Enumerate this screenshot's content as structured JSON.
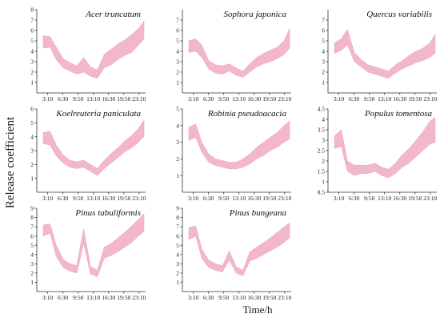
{
  "figure": {
    "ylabel": "Release coefficient",
    "xlabel": "Time/h"
  },
  "chart_data": [
    {
      "type": "area",
      "title": "Acer truncatum",
      "ylim": [
        0,
        8
      ],
      "yticks": [
        1,
        2,
        3,
        4,
        5,
        6,
        7,
        8
      ],
      "xticks": [
        "3:10",
        "6:30",
        "9:50",
        "13:10",
        "16:30",
        "19:50",
        "23:10"
      ],
      "band_color": "#f2b6cd",
      "x": [
        "0:00",
        "1:40",
        "3:10",
        "4:50",
        "6:30",
        "8:10",
        "9:50",
        "11:30",
        "13:10",
        "14:50",
        "16:30",
        "18:10",
        "19:50",
        "21:30",
        "23:10",
        "24:30"
      ],
      "lower": [
        4.3,
        4.4,
        3.2,
        2.4,
        2.1,
        1.8,
        2.0,
        1.6,
        1.4,
        2.4,
        2.7,
        3.2,
        3.6,
        3.9,
        4.6,
        5.2
      ],
      "upper": [
        5.5,
        5.4,
        4.4,
        3.3,
        2.9,
        2.6,
        3.4,
        2.5,
        2.2,
        3.7,
        4.2,
        4.7,
        5.1,
        5.6,
        6.2,
        6.9
      ]
    },
    {
      "type": "area",
      "title": "Sophora japonica",
      "ylim": [
        0,
        8
      ],
      "yticks": [
        1,
        2,
        3,
        4,
        5,
        6,
        7
      ],
      "xticks": [
        "3:10",
        "6:30",
        "9:50",
        "13:10",
        "16:30",
        "19:50",
        "23:10"
      ],
      "band_color": "#f2b6cd",
      "x": [
        "0:00",
        "1:40",
        "3:10",
        "4:50",
        "6:30",
        "8:10",
        "9:50",
        "11:30",
        "13:10",
        "14:50",
        "16:30",
        "18:10",
        "19:50",
        "21:30",
        "23:10",
        "24:30"
      ],
      "lower": [
        3.9,
        4.0,
        3.4,
        2.3,
        1.9,
        1.8,
        2.1,
        1.7,
        1.5,
        2.0,
        2.5,
        2.8,
        3.0,
        3.3,
        3.7,
        4.3
      ],
      "upper": [
        5.0,
        5.2,
        4.6,
        3.1,
        2.7,
        2.6,
        2.8,
        2.4,
        2.1,
        2.8,
        3.4,
        3.8,
        4.1,
        4.4,
        5.0,
        6.2
      ]
    },
    {
      "type": "area",
      "title": "Quercus variabilis",
      "ylim": [
        0,
        8
      ],
      "yticks": [
        1,
        2,
        3,
        4,
        5,
        6,
        7
      ],
      "xticks": [
        "3:10",
        "6:30",
        "9:50",
        "13:10",
        "16:30",
        "19:50",
        "23:10"
      ],
      "band_color": "#f2b6cd",
      "x": [
        "0:00",
        "1:40",
        "3:10",
        "4:50",
        "6:30",
        "8:10",
        "9:50",
        "11:30",
        "13:10",
        "14:50",
        "16:30",
        "18:10",
        "19:50",
        "21:30",
        "23:10",
        "24:30"
      ],
      "lower": [
        3.8,
        4.1,
        4.6,
        3.0,
        2.5,
        2.0,
        1.8,
        1.6,
        1.4,
        1.9,
        2.3,
        2.6,
        2.9,
        3.1,
        3.4,
        3.8
      ],
      "upper": [
        4.8,
        5.2,
        6.1,
        3.9,
        3.2,
        2.7,
        2.5,
        2.3,
        2.1,
        2.7,
        3.1,
        3.6,
        4.0,
        4.3,
        4.8,
        5.6
      ]
    },
    {
      "type": "area",
      "title": "Koelreuteria paniculata",
      "ylim": [
        0,
        6
      ],
      "yticks": [
        1,
        2,
        3,
        4,
        5,
        6
      ],
      "xticks": [
        "3:10",
        "6:30",
        "9:50",
        "13:10",
        "16:30",
        "19:50",
        "23:10"
      ],
      "band_color": "#f2b6cd",
      "x": [
        "0:00",
        "1:40",
        "3:10",
        "4:50",
        "6:30",
        "8:10",
        "9:50",
        "11:30",
        "13:10",
        "14:50",
        "16:30",
        "18:10",
        "19:50",
        "21:30",
        "23:10",
        "24:30"
      ],
      "lower": [
        3.5,
        3.4,
        2.6,
        2.1,
        1.8,
        1.7,
        1.8,
        1.5,
        1.2,
        1.7,
        2.1,
        2.5,
        2.9,
        3.2,
        3.6,
        4.0
      ],
      "upper": [
        4.3,
        4.4,
        3.4,
        2.7,
        2.3,
        2.2,
        2.3,
        2.0,
        1.7,
        2.3,
        2.8,
        3.2,
        3.7,
        4.1,
        4.6,
        5.2
      ]
    },
    {
      "type": "area",
      "title": "Robinia pseudoacacia",
      "ylim": [
        0,
        5
      ],
      "yticks": [
        1,
        2,
        3,
        4,
        5
      ],
      "xticks": [
        "3:10",
        "6:30",
        "9:50",
        "13:10",
        "16:30",
        "19:50",
        "23:10"
      ],
      "band_color": "#f2b6cd",
      "x": [
        "0:00",
        "1:40",
        "3:10",
        "4:50",
        "6:30",
        "8:10",
        "9:50",
        "11:30",
        "13:10",
        "14:50",
        "16:30",
        "18:10",
        "19:50",
        "21:30",
        "23:10",
        "24:30"
      ],
      "lower": [
        3.1,
        3.3,
        2.4,
        1.8,
        1.6,
        1.5,
        1.4,
        1.4,
        1.5,
        1.7,
        2.0,
        2.2,
        2.5,
        2.7,
        3.0,
        3.2
      ],
      "upper": [
        3.9,
        4.1,
        3.0,
        2.3,
        2.0,
        1.9,
        1.8,
        1.8,
        2.0,
        2.3,
        2.7,
        3.0,
        3.3,
        3.6,
        4.0,
        4.3
      ]
    },
    {
      "type": "area",
      "title": "Populus tomentosa",
      "ylim": [
        0.5,
        4.5
      ],
      "yticks": [
        0.5,
        1,
        1.5,
        2,
        2.5,
        3,
        3.5,
        4,
        4.5
      ],
      "xticks": [
        "3:10",
        "6:30",
        "9:50",
        "13:10",
        "16:30",
        "19:50",
        "23:10"
      ],
      "band_color": "#f2b6cd",
      "x": [
        "0:00",
        "1:40",
        "3:10",
        "4:50",
        "6:30",
        "8:10",
        "9:50",
        "11:30",
        "13:10",
        "14:50",
        "16:30",
        "18:10",
        "19:50",
        "21:30",
        "23:10",
        "24:30"
      ],
      "lower": [
        2.6,
        2.7,
        1.5,
        1.3,
        1.4,
        1.4,
        1.5,
        1.3,
        1.2,
        1.4,
        1.7,
        1.9,
        2.2,
        2.5,
        2.8,
        2.9
      ],
      "upper": [
        3.2,
        3.5,
        2.0,
        1.8,
        1.8,
        1.8,
        1.9,
        1.7,
        1.6,
        1.9,
        2.3,
        2.6,
        3.0,
        3.4,
        3.9,
        4.1
      ]
    },
    {
      "type": "area",
      "title": "Pinus tabuliformis",
      "ylim": [
        0,
        9
      ],
      "yticks": [
        1,
        2,
        3,
        4,
        5,
        6,
        7,
        8,
        9
      ],
      "xticks": [
        "3:10",
        "6:30",
        "9:50",
        "13:10",
        "16:30",
        "19:50",
        "23:10"
      ],
      "band_color": "#f2b6cd",
      "x": [
        "0:00",
        "1:40",
        "3:10",
        "4:50",
        "6:30",
        "8:10",
        "9:50",
        "11:30",
        "13:10",
        "14:50",
        "16:30",
        "18:10",
        "19:50",
        "21:30",
        "23:10",
        "24:30"
      ],
      "lower": [
        6.0,
        6.3,
        3.8,
        2.6,
        2.2,
        2.0,
        5.2,
        1.9,
        1.6,
        3.6,
        3.9,
        4.3,
        4.8,
        5.3,
        6.0,
        6.5
      ],
      "upper": [
        7.2,
        7.3,
        5.0,
        3.5,
        3.0,
        2.8,
        6.8,
        2.7,
        2.3,
        4.8,
        5.2,
        5.8,
        6.4,
        7.1,
        7.8,
        8.4
      ]
    },
    {
      "type": "area",
      "title": "Pinus bungeana",
      "ylim": [
        0,
        9
      ],
      "yticks": [
        1,
        2,
        3,
        4,
        5,
        6,
        7,
        8,
        9
      ],
      "xticks": [
        "3:10",
        "6:30",
        "9:50",
        "13:10",
        "16:30",
        "19:50",
        "23:10"
      ],
      "band_color": "#f2b6cd",
      "x": [
        "0:00",
        "1:40",
        "3:10",
        "4:50",
        "6:30",
        "8:10",
        "9:50",
        "11:30",
        "13:10",
        "14:50",
        "16:30",
        "18:10",
        "19:50",
        "21:30",
        "23:10",
        "24:30"
      ],
      "lower": [
        5.6,
        6.0,
        3.6,
        2.6,
        2.3,
        2.1,
        3.4,
        2.0,
        1.7,
        3.3,
        3.6,
        4.0,
        4.4,
        4.8,
        5.3,
        5.8
      ],
      "upper": [
        6.9,
        7.1,
        4.6,
        3.4,
        3.0,
        2.8,
        4.4,
        2.7,
        2.3,
        4.3,
        4.8,
        5.3,
        5.8,
        6.4,
        7.0,
        7.4
      ]
    }
  ]
}
